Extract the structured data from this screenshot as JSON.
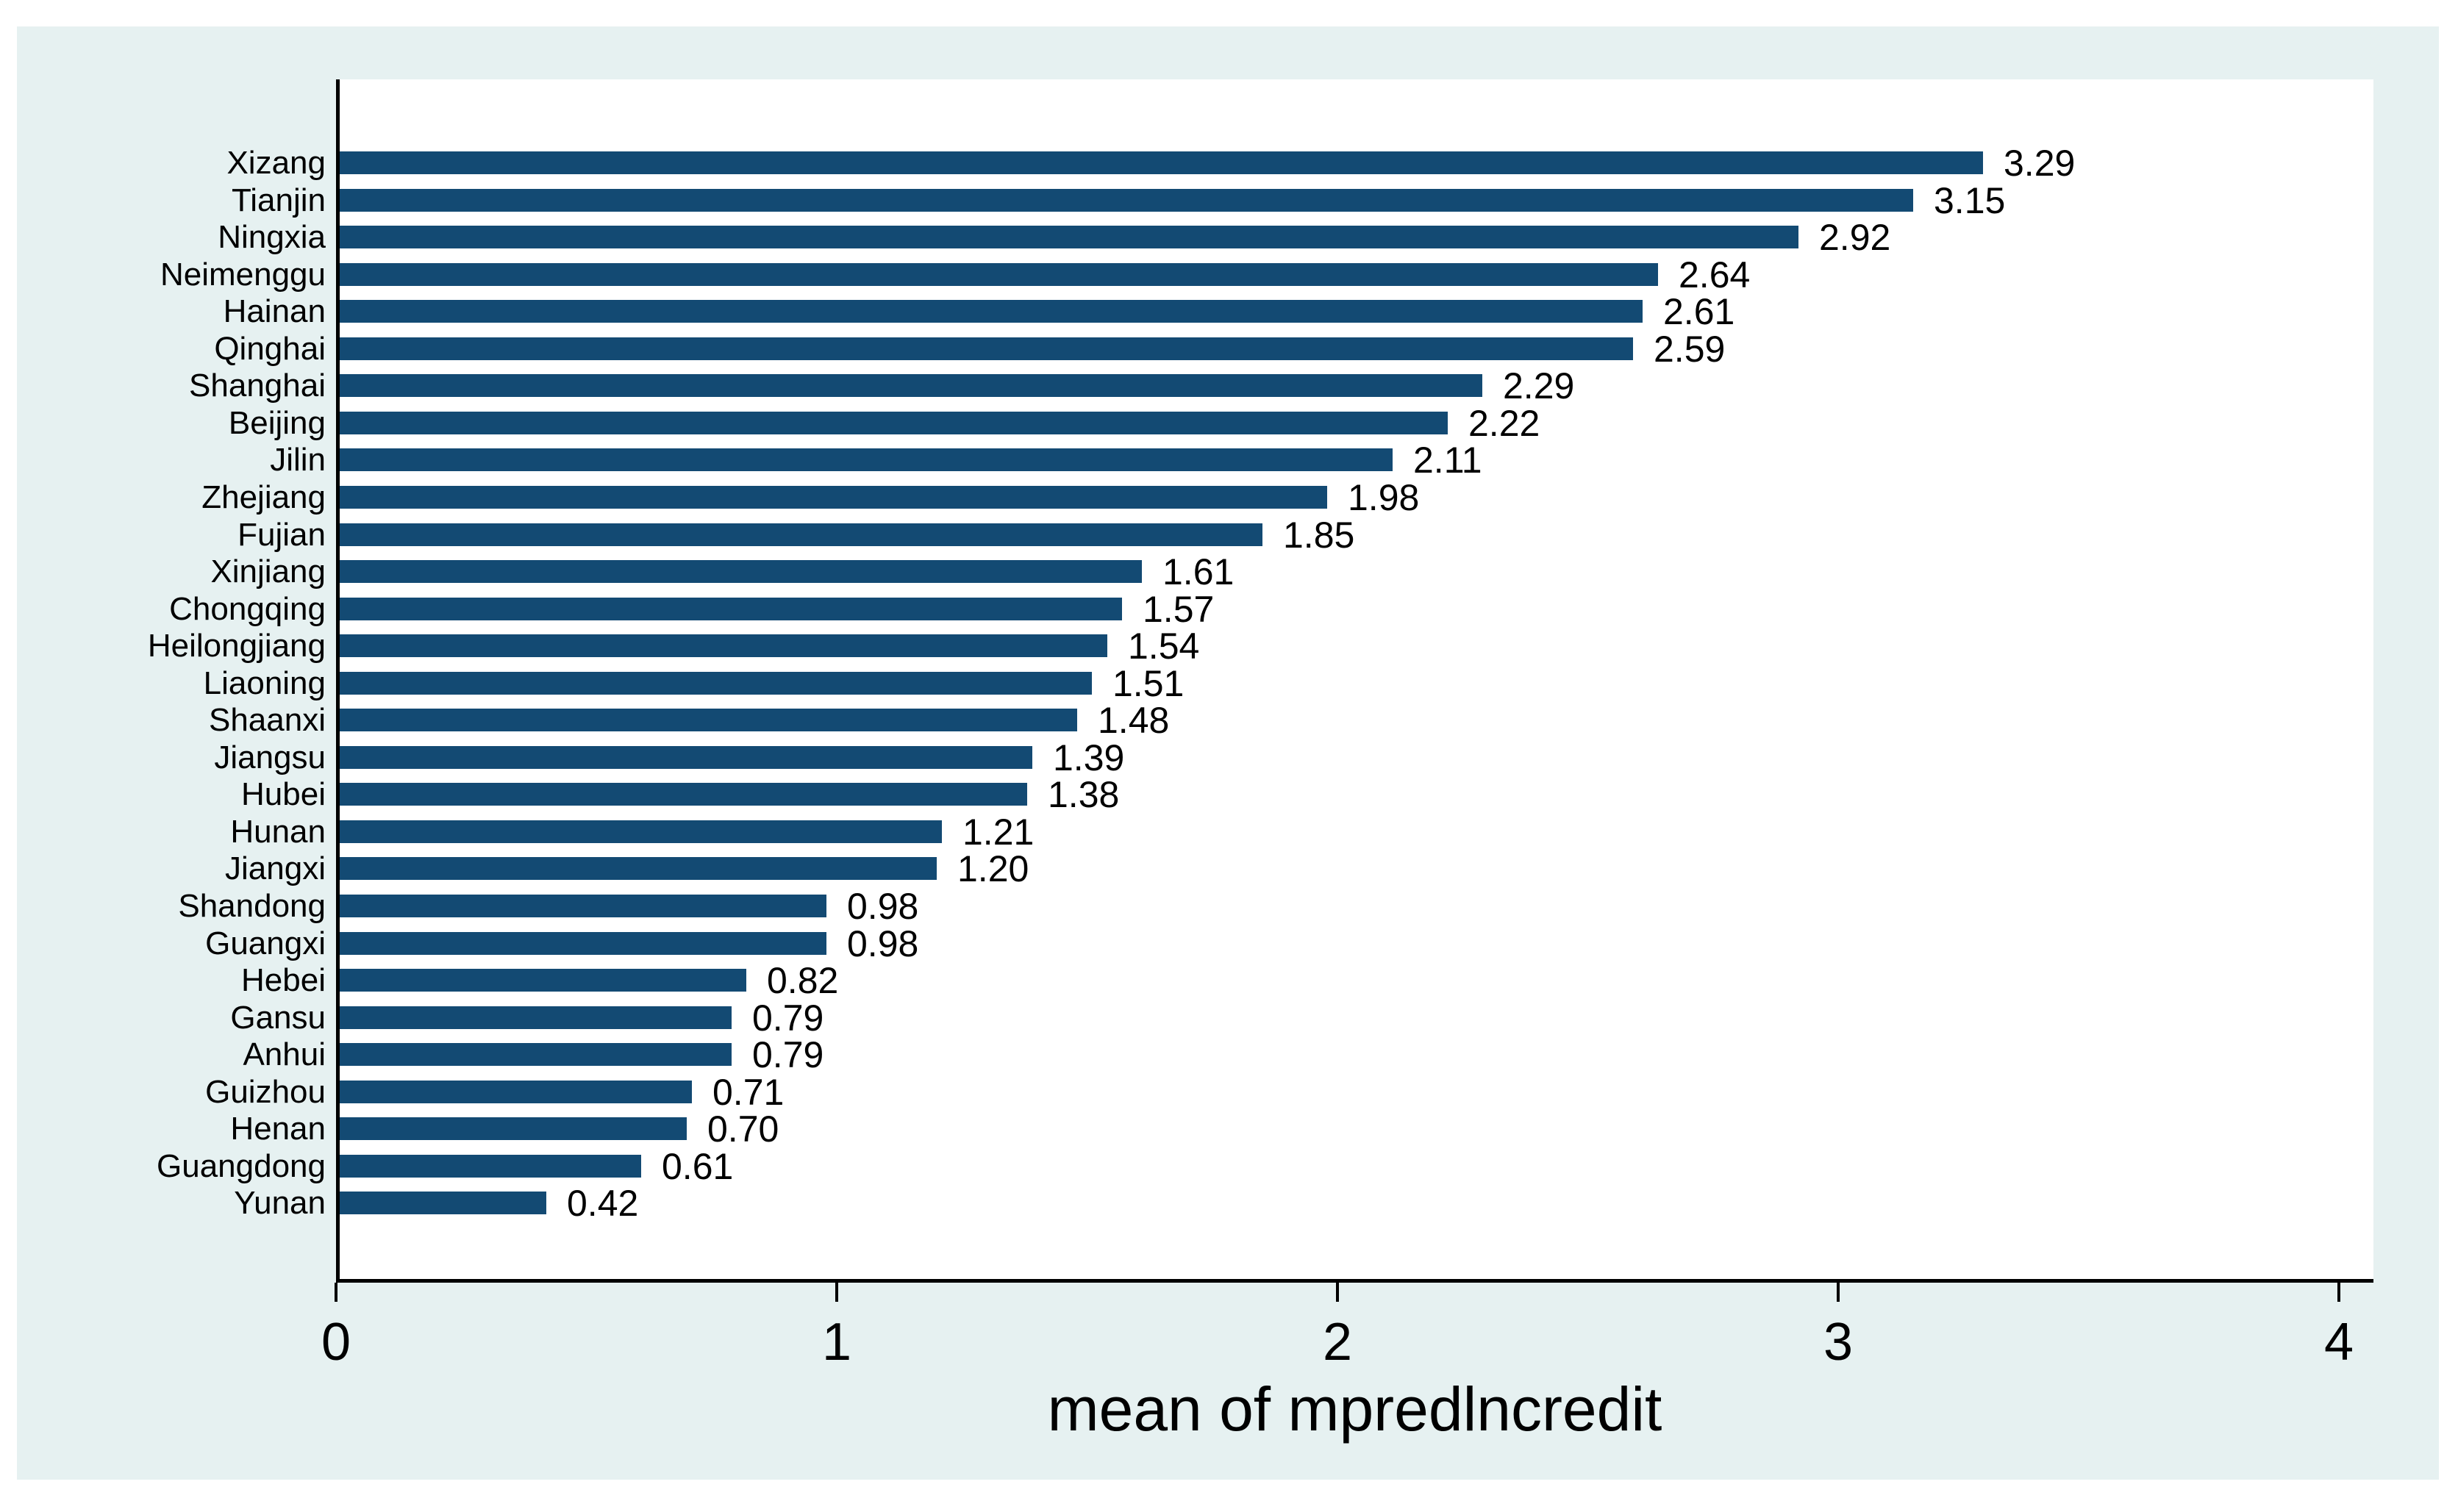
{
  "chart_data": {
    "type": "bar",
    "orientation": "horizontal",
    "title": "",
    "xlabel": "mean of mpredlncredit",
    "ylabel": "",
    "categories": [
      "Xizang",
      "Tianjin",
      "Ningxia",
      "Neimenggu",
      "Hainan",
      "Qinghai",
      "Shanghai",
      "Beijing",
      "Jilin",
      "Zhejiang",
      "Fujian",
      "Xinjiang",
      "Chongqing",
      "Heilongjiang",
      "Liaoning",
      "Shaanxi",
      "Jiangsu",
      "Hubei",
      "Hunan",
      "Jiangxi",
      "Shandong",
      "Guangxi",
      "Hebei",
      "Gansu",
      "Anhui",
      "Guizhou",
      "Henan",
      "Guangdong",
      "Yunan"
    ],
    "values": [
      3.29,
      3.15,
      2.92,
      2.64,
      2.61,
      2.59,
      2.29,
      2.22,
      2.11,
      1.98,
      1.85,
      1.61,
      1.57,
      1.54,
      1.51,
      1.48,
      1.39,
      1.38,
      1.21,
      1.2,
      0.98,
      0.98,
      0.82,
      0.79,
      0.79,
      0.71,
      0.7,
      0.61,
      0.42
    ],
    "value_labels": [
      "3.29",
      "3.15",
      "2.92",
      "2.64",
      "2.61",
      "2.59",
      "2.29",
      "2.22",
      "2.11",
      "1.98",
      "1.85",
      "1.61",
      "1.57",
      "1.54",
      "1.51",
      "1.48",
      "1.39",
      "1.38",
      "1.21",
      "1.20",
      "0.98",
      "0.98",
      "0.82",
      "0.79",
      "0.79",
      "0.71",
      "0.70",
      "0.61",
      "0.42"
    ],
    "x_ticks": [
      0,
      1,
      2,
      3,
      4
    ],
    "xlim": [
      0,
      4.07
    ],
    "grid": true,
    "legend_position": "none"
  },
  "colors": {
    "bar": "#134a73",
    "canvas_background": "#e6f1f1",
    "plot_background": "#ffffff",
    "gridline": "#e2eeef",
    "axis": "#000000",
    "text": "#000000"
  }
}
